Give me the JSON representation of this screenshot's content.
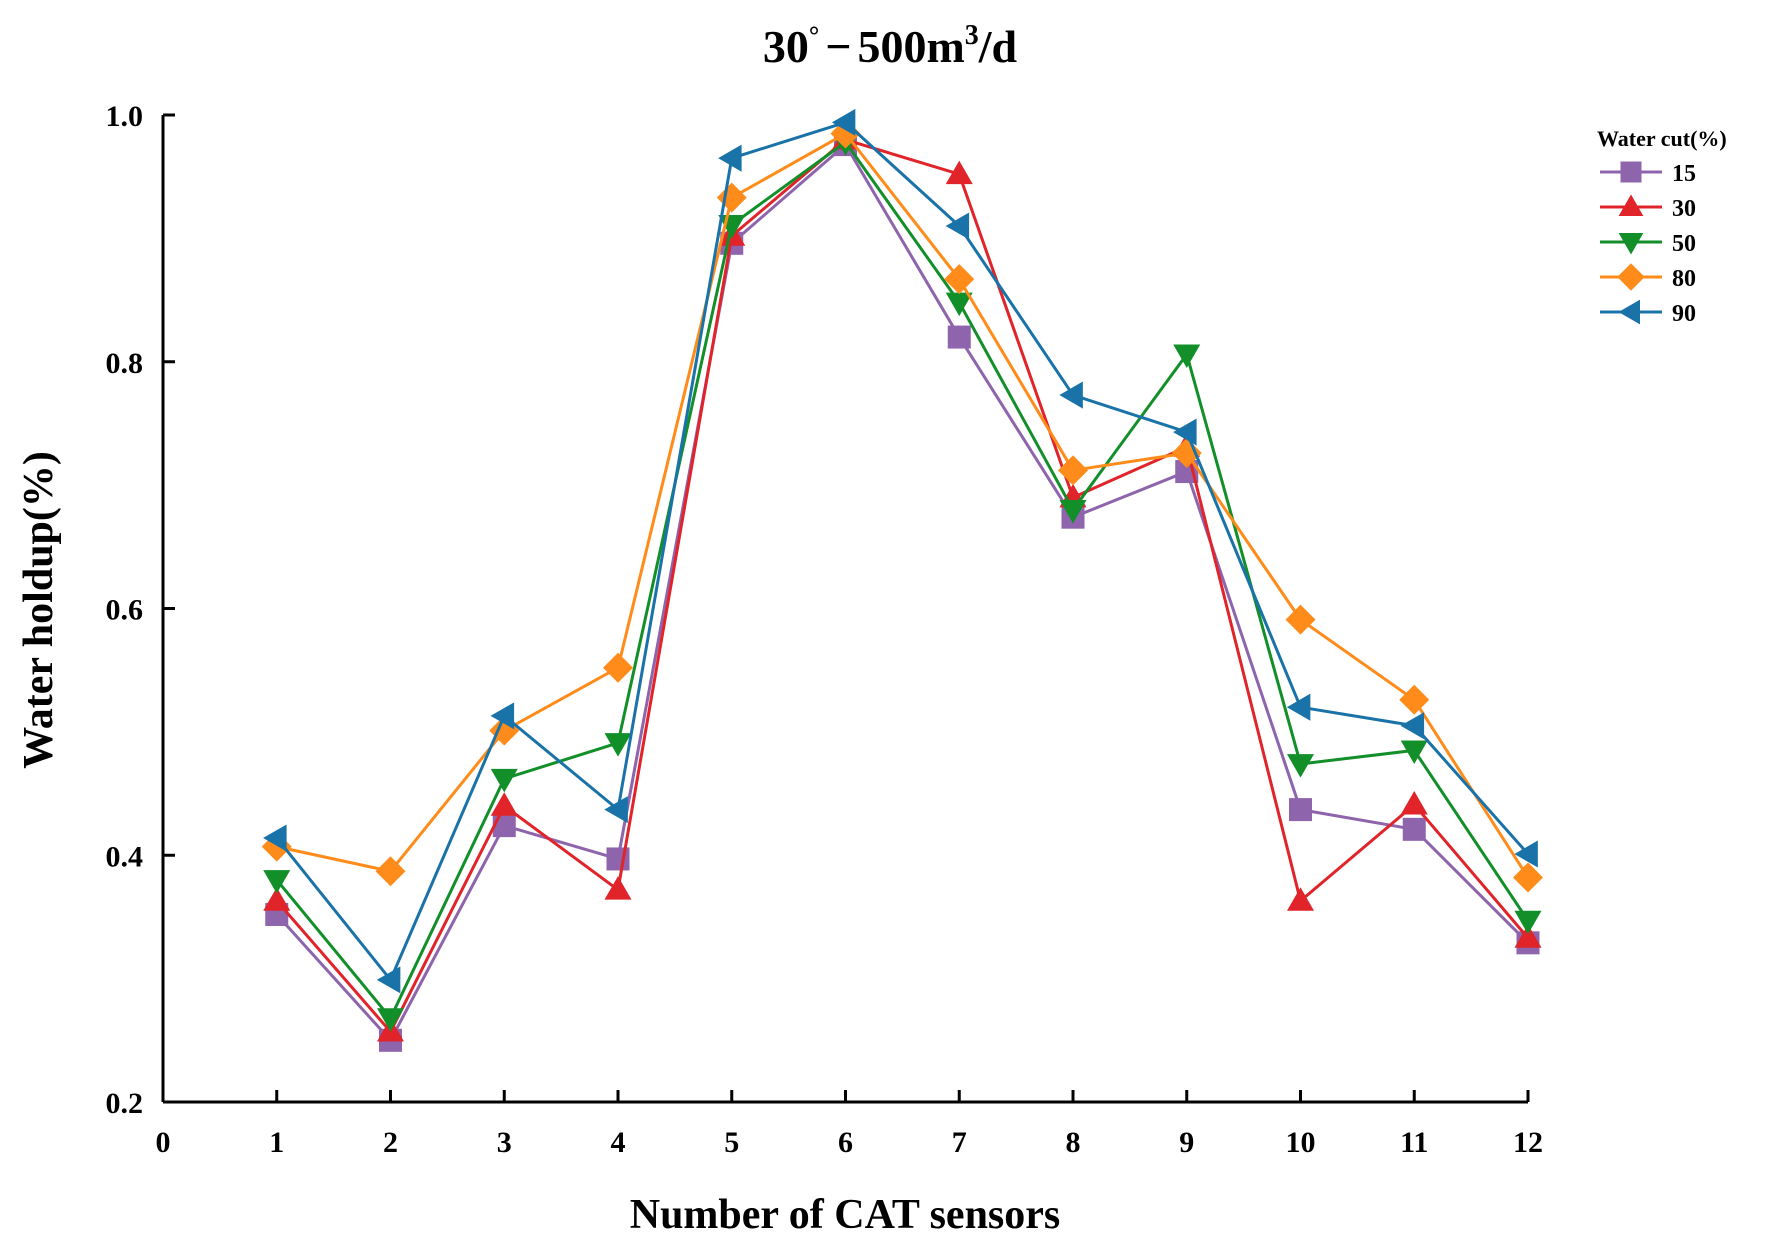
{
  "chart_data": {
    "type": "line",
    "title": {
      "main": "30",
      "degree": "°",
      "dash": "−",
      "flow": "500m",
      "exp": "3",
      "unit": "/d"
    },
    "xlabel": "Number of CAT sensors",
    "ylabel": "Water holdup(%)",
    "x": [
      1,
      2,
      3,
      4,
      5,
      6,
      7,
      8,
      9,
      10,
      11,
      12
    ],
    "xlim": [
      0,
      12
    ],
    "ylim": [
      0.2,
      1.0
    ],
    "x_ticks": [
      "0",
      "1",
      "2",
      "3",
      "4",
      "5",
      "6",
      "7",
      "8",
      "9",
      "10",
      "11",
      "12"
    ],
    "y_ticks": [
      "0.2",
      "0.4",
      "0.6",
      "0.8",
      "1.0"
    ],
    "grid": false,
    "legend": {
      "title": "Water cut(%)",
      "position": "top-right"
    },
    "series": [
      {
        "name": "15",
        "color": "#8e64ac",
        "marker": "square",
        "values": [
          0.352,
          0.25,
          0.424,
          0.397,
          0.896,
          0.976,
          0.82,
          0.674,
          0.711,
          0.437,
          0.421,
          0.329
        ]
      },
      {
        "name": "30",
        "color": "#e0242a",
        "marker": "triangle-up",
        "values": [
          0.363,
          0.257,
          0.44,
          0.372,
          0.902,
          0.98,
          0.952,
          0.69,
          0.731,
          0.363,
          0.441,
          0.333
        ]
      },
      {
        "name": "50",
        "color": "#138f2a",
        "marker": "triangle-down",
        "values": [
          0.38,
          0.268,
          0.462,
          0.491,
          0.911,
          0.978,
          0.848,
          0.68,
          0.806,
          0.474,
          0.485,
          0.347
        ]
      },
      {
        "name": "80",
        "color": "#ff8c1a",
        "marker": "diamond",
        "values": [
          0.407,
          0.387,
          0.501,
          0.552,
          0.933,
          0.985,
          0.867,
          0.712,
          0.726,
          0.591,
          0.526,
          0.382
        ]
      },
      {
        "name": "90",
        "color": "#1a73a8",
        "marker": "triangle-left",
        "values": [
          0.414,
          0.299,
          0.513,
          0.437,
          0.965,
          0.994,
          0.91,
          0.773,
          0.743,
          0.52,
          0.505,
          0.401
        ]
      }
    ]
  }
}
